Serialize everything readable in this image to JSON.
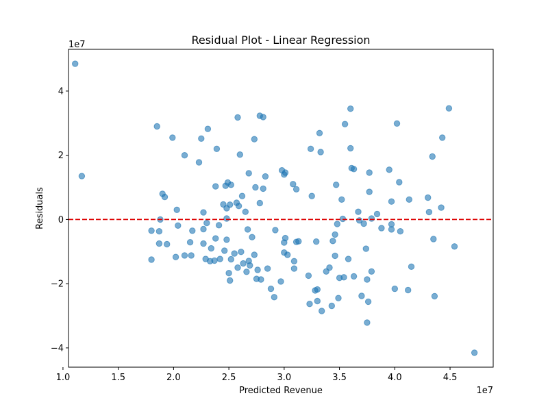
{
  "chart_data": {
    "type": "scatter",
    "title": "Residual Plot - Linear Regression",
    "xlabel": "Predicted Revenue",
    "ylabel": "Residuals",
    "x_multiplier_label": "1e7",
    "y_multiplier_label": "1e7",
    "xlim": [
      10500000,
      48900000
    ],
    "ylim": [
      -46000000,
      53000000
    ],
    "x_ticks": [
      10000000,
      15000000,
      20000000,
      25000000,
      30000000,
      35000000,
      40000000,
      45000000
    ],
    "x_tick_labels": [
      "1.0",
      "1.5",
      "2.0",
      "2.5",
      "3.0",
      "3.5",
      "4.0",
      "4.5"
    ],
    "y_ticks": [
      -40000000,
      -20000000,
      0,
      20000000,
      40000000
    ],
    "y_tick_labels": [
      "−4",
      "−2",
      "0",
      "2",
      "4"
    ],
    "reference_line": {
      "y": 0,
      "style": "dashed",
      "color": "#dd0000"
    },
    "point_color": "#1f77b4",
    "point_opacity": 0.6,
    "grid": false,
    "points": [
      {
        "x": 11100000,
        "y": 48500000
      },
      {
        "x": 11700000,
        "y": 13500000
      },
      {
        "x": 18000000,
        "y": -3500000
      },
      {
        "x": 18000000,
        "y": -12500000
      },
      {
        "x": 18500000,
        "y": 29000000
      },
      {
        "x": 18700000,
        "y": -3700000
      },
      {
        "x": 18700000,
        "y": -7500000
      },
      {
        "x": 18800000,
        "y": -2000
      },
      {
        "x": 19000000,
        "y": 8000000
      },
      {
        "x": 19200000,
        "y": 7000000
      },
      {
        "x": 19400000,
        "y": -7700000
      },
      {
        "x": 19900000,
        "y": 25500000
      },
      {
        "x": 20200000,
        "y": -11700000
      },
      {
        "x": 20300000,
        "y": 3000000
      },
      {
        "x": 20400000,
        "y": -1900000
      },
      {
        "x": 21000000,
        "y": -11200000
      },
      {
        "x": 21000000,
        "y": 20000000
      },
      {
        "x": 21500000,
        "y": -7100000
      },
      {
        "x": 21600000,
        "y": -11200000
      },
      {
        "x": 21700000,
        "y": -3500000
      },
      {
        "x": 22300000,
        "y": 17800000
      },
      {
        "x": 22500000,
        "y": 25200000
      },
      {
        "x": 22700000,
        "y": 2200000
      },
      {
        "x": 22700000,
        "y": -3000000
      },
      {
        "x": 22700000,
        "y": -7500000
      },
      {
        "x": 22900000,
        "y": -12300000
      },
      {
        "x": 23000000,
        "y": -1100000
      },
      {
        "x": 23100000,
        "y": 28200000
      },
      {
        "x": 23400000,
        "y": -9000000
      },
      {
        "x": 23300000,
        "y": -13000000
      },
      {
        "x": 23800000,
        "y": 10300000
      },
      {
        "x": 23800000,
        "y": -5900000
      },
      {
        "x": 23900000,
        "y": 22000000
      },
      {
        "x": 23700000,
        "y": -12800000
      },
      {
        "x": 24100000,
        "y": -1800000
      },
      {
        "x": 24200000,
        "y": -12300000
      },
      {
        "x": 24500000,
        "y": 4700000
      },
      {
        "x": 24600000,
        "y": -9700000
      },
      {
        "x": 24700000,
        "y": 10500000
      },
      {
        "x": 24800000,
        "y": 3500000
      },
      {
        "x": 24800000,
        "y": 300000
      },
      {
        "x": 24800000,
        "y": -6300000
      },
      {
        "x": 24900000,
        "y": 11500000
      },
      {
        "x": 25000000,
        "y": -16700000
      },
      {
        "x": 25100000,
        "y": 4600000
      },
      {
        "x": 25100000,
        "y": -19000000
      },
      {
        "x": 25200000,
        "y": -12400000
      },
      {
        "x": 25200000,
        "y": 10800000
      },
      {
        "x": 25500000,
        "y": -10600000
      },
      {
        "x": 25700000,
        "y": 5200000
      },
      {
        "x": 25800000,
        "y": -15000000
      },
      {
        "x": 25800000,
        "y": 31800000
      },
      {
        "x": 25900000,
        "y": 4200000
      },
      {
        "x": 26000000,
        "y": 20200000
      },
      {
        "x": 26100000,
        "y": -10100000
      },
      {
        "x": 26200000,
        "y": 7300000
      },
      {
        "x": 26300000,
        "y": -13700000
      },
      {
        "x": 26500000,
        "y": 2400000
      },
      {
        "x": 26600000,
        "y": -16300000
      },
      {
        "x": 26700000,
        "y": -3100000
      },
      {
        "x": 26800000,
        "y": -12900000
      },
      {
        "x": 26800000,
        "y": 14400000
      },
      {
        "x": 26900000,
        "y": -14300000
      },
      {
        "x": 27100000,
        "y": -5500000
      },
      {
        "x": 27300000,
        "y": 25000000
      },
      {
        "x": 27300000,
        "y": -11000000
      },
      {
        "x": 27400000,
        "y": 10000000
      },
      {
        "x": 27500000,
        "y": -18500000
      },
      {
        "x": 27600000,
        "y": -15700000
      },
      {
        "x": 27800000,
        "y": 5100000
      },
      {
        "x": 27800000,
        "y": 32300000
      },
      {
        "x": 27900000,
        "y": -18700000
      },
      {
        "x": 28100000,
        "y": 31900000
      },
      {
        "x": 28100000,
        "y": 9600000
      },
      {
        "x": 28300000,
        "y": 13400000
      },
      {
        "x": 28500000,
        "y": -15300000
      },
      {
        "x": 28800000,
        "y": -21600000
      },
      {
        "x": 29100000,
        "y": -24200000
      },
      {
        "x": 29200000,
        "y": -3300000
      },
      {
        "x": 29700000,
        "y": -19300000
      },
      {
        "x": 29800000,
        "y": 15300000
      },
      {
        "x": 30000000,
        "y": -7200000
      },
      {
        "x": 30000000,
        "y": 14000000
      },
      {
        "x": 30000000,
        "y": -10300000
      },
      {
        "x": 30100000,
        "y": 14600000
      },
      {
        "x": 30100000,
        "y": -5800000
      },
      {
        "x": 30300000,
        "y": -11000000
      },
      {
        "x": 30800000,
        "y": 11000000
      },
      {
        "x": 30900000,
        "y": -13000000
      },
      {
        "x": 30900000,
        "y": -15300000
      },
      {
        "x": 31100000,
        "y": 9400000
      },
      {
        "x": 31100000,
        "y": -7000000
      },
      {
        "x": 31300000,
        "y": -6800000
      },
      {
        "x": 32200000,
        "y": -17500000
      },
      {
        "x": 32300000,
        "y": -26300000
      },
      {
        "x": 32400000,
        "y": 22000000
      },
      {
        "x": 32500000,
        "y": 7300000
      },
      {
        "x": 32800000,
        "y": -22100000
      },
      {
        "x": 32900000,
        "y": -6900000
      },
      {
        "x": 33000000,
        "y": -21800000
      },
      {
        "x": 33000000,
        "y": -25400000
      },
      {
        "x": 33200000,
        "y": 26900000
      },
      {
        "x": 33300000,
        "y": 21000000
      },
      {
        "x": 33400000,
        "y": -28500000
      },
      {
        "x": 33800000,
        "y": -16200000
      },
      {
        "x": 34100000,
        "y": -15000000
      },
      {
        "x": 34300000,
        "y": -26900000
      },
      {
        "x": 34400000,
        "y": -6700000
      },
      {
        "x": 34600000,
        "y": -11300000
      },
      {
        "x": 34600000,
        "y": -4700000
      },
      {
        "x": 34700000,
        "y": 10800000
      },
      {
        "x": 34800000,
        "y": -1400000
      },
      {
        "x": 34900000,
        "y": -24500000
      },
      {
        "x": 35000000,
        "y": -18200000
      },
      {
        "x": 35200000,
        "y": 6200000
      },
      {
        "x": 35300000,
        "y": 200000
      },
      {
        "x": 35400000,
        "y": -18000000
      },
      {
        "x": 35500000,
        "y": 29700000
      },
      {
        "x": 35800000,
        "y": -12300000
      },
      {
        "x": 36000000,
        "y": 34500000
      },
      {
        "x": 36000000,
        "y": 22200000
      },
      {
        "x": 36100000,
        "y": 16000000
      },
      {
        "x": 36300000,
        "y": 15700000
      },
      {
        "x": 36300000,
        "y": -17700000
      },
      {
        "x": 36700000,
        "y": 2400000
      },
      {
        "x": 36800000,
        "y": -300000
      },
      {
        "x": 37000000,
        "y": -23800000
      },
      {
        "x": 37200000,
        "y": -1300000
      },
      {
        "x": 37400000,
        "y": -9100000
      },
      {
        "x": 37500000,
        "y": -32100000
      },
      {
        "x": 37600000,
        "y": -25600000
      },
      {
        "x": 37500000,
        "y": -18700000
      },
      {
        "x": 37700000,
        "y": 14600000
      },
      {
        "x": 37700000,
        "y": 8600000
      },
      {
        "x": 37900000,
        "y": 300000
      },
      {
        "x": 37900000,
        "y": -16200000
      },
      {
        "x": 38400000,
        "y": 1700000
      },
      {
        "x": 38800000,
        "y": -2700000
      },
      {
        "x": 39500000,
        "y": 15500000
      },
      {
        "x": 39700000,
        "y": 5600000
      },
      {
        "x": 39700000,
        "y": -1500000
      },
      {
        "x": 39700000,
        "y": -3100000
      },
      {
        "x": 40000000,
        "y": -21600000
      },
      {
        "x": 40200000,
        "y": 29900000
      },
      {
        "x": 40400000,
        "y": 11600000
      },
      {
        "x": 40500000,
        "y": -3700000
      },
      {
        "x": 41200000,
        "y": -22000000
      },
      {
        "x": 41300000,
        "y": 6200000
      },
      {
        "x": 41500000,
        "y": -14700000
      },
      {
        "x": 43000000,
        "y": 6800000
      },
      {
        "x": 43100000,
        "y": 2300000
      },
      {
        "x": 43400000,
        "y": 19600000
      },
      {
        "x": 43500000,
        "y": -6100000
      },
      {
        "x": 43600000,
        "y": -23900000
      },
      {
        "x": 44200000,
        "y": 3700000
      },
      {
        "x": 44300000,
        "y": 25500000
      },
      {
        "x": 44900000,
        "y": 34600000
      },
      {
        "x": 45400000,
        "y": -8400000
      },
      {
        "x": 47200000,
        "y": -41500000
      }
    ]
  }
}
